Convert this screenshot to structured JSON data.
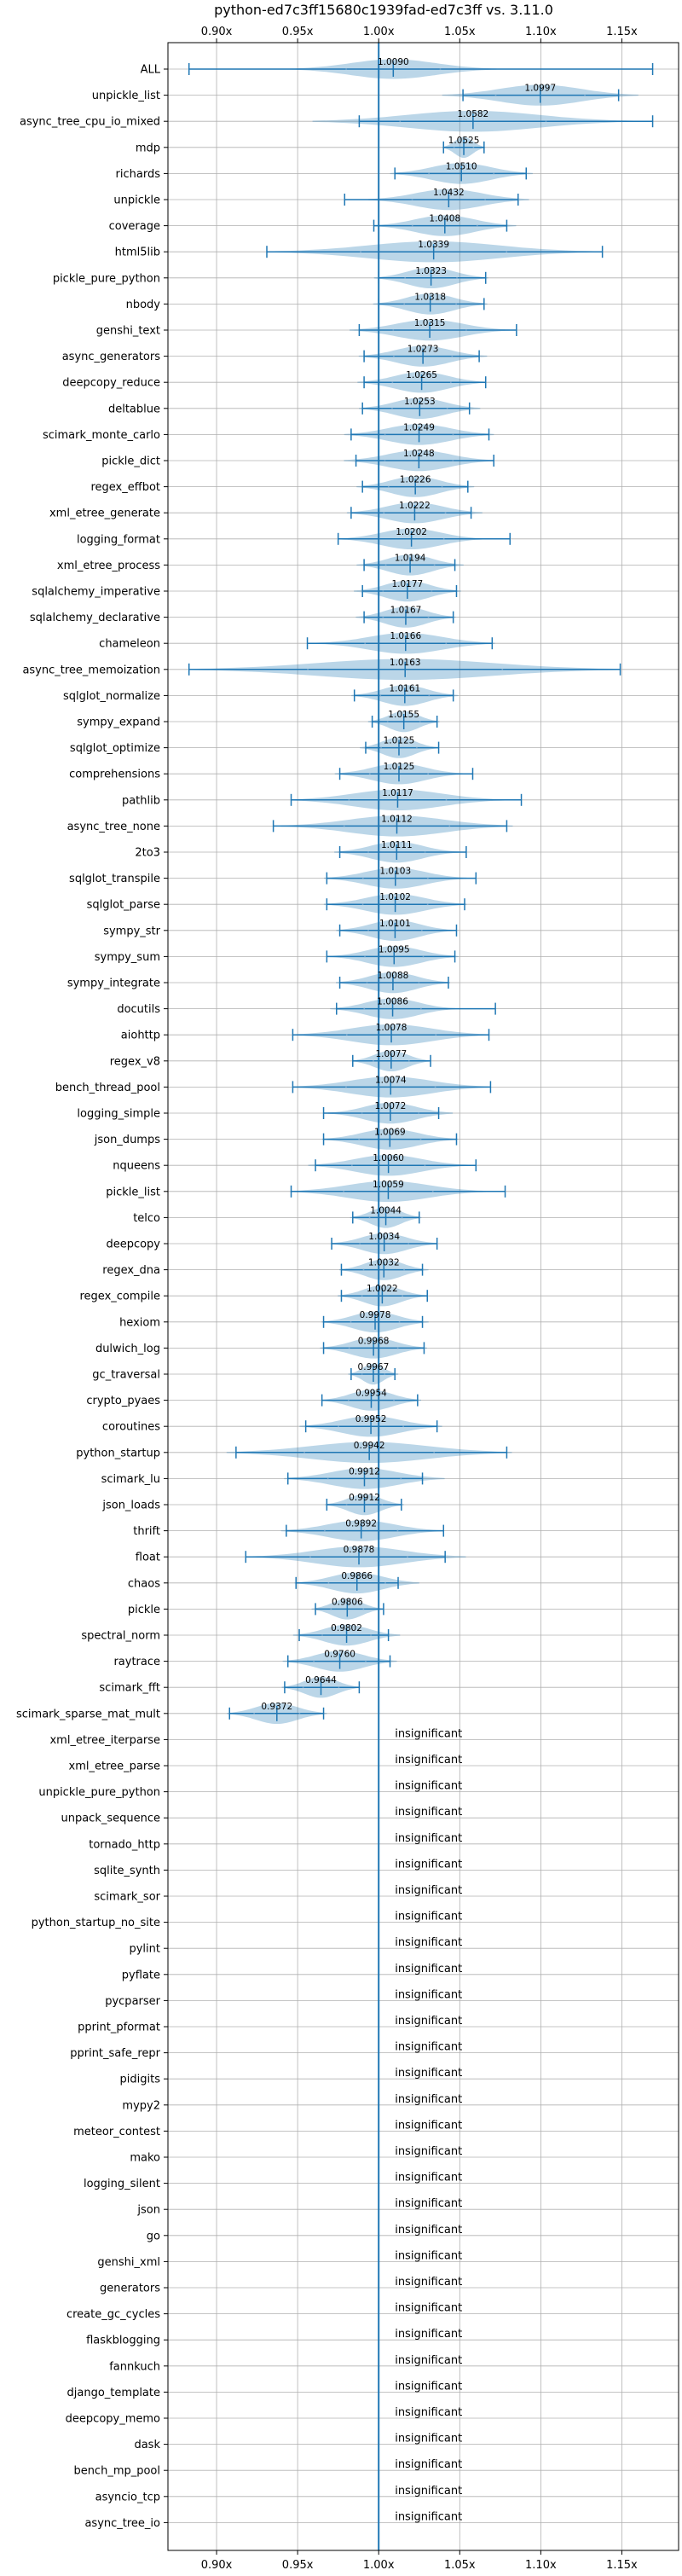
{
  "chart_data": {
    "type": "violin",
    "title": "python-ed7c3ff15680c1939fad-ed7c3ff vs. 3.11.0",
    "xlim": [
      0.87,
      1.185
    ],
    "xticks": [
      0.9,
      0.95,
      1.0,
      1.05,
      1.1,
      1.15
    ],
    "xtick_labels": [
      "0.90x",
      "0.95x",
      "1.00x",
      "1.05x",
      "1.10x",
      "1.15x"
    ],
    "reference_line": 1.0,
    "grid": true,
    "insignificant_label": "insignificant",
    "benchmarks": [
      {
        "name": "ALL",
        "label": "1.0090",
        "median": 1.009,
        "min": 0.883,
        "max": 1.169,
        "spread": 0.058,
        "height": 0.75
      },
      {
        "name": "unpickle_list",
        "label": "1.0997",
        "median": 1.0997,
        "min": 1.052,
        "max": 1.148,
        "spread": 0.055,
        "height": 0.8
      },
      {
        "name": "async_tree_cpu_io_mixed",
        "label": "1.0582",
        "median": 1.0582,
        "min": 0.988,
        "max": 1.169,
        "spread": 0.09,
        "height": 0.8
      },
      {
        "name": "mdp",
        "label": "1.0525",
        "median": 1.0525,
        "min": 1.04,
        "max": 1.065,
        "spread": 0.012,
        "height": 0.8
      },
      {
        "name": "richards",
        "label": "1.0510",
        "median": 1.051,
        "min": 1.01,
        "max": 1.091,
        "spread": 0.04,
        "height": 0.8
      },
      {
        "name": "unpickle",
        "label": "1.0432",
        "median": 1.0432,
        "min": 0.979,
        "max": 1.086,
        "spread": 0.045,
        "height": 0.8
      },
      {
        "name": "coverage",
        "label": "1.0408",
        "median": 1.0408,
        "min": 0.997,
        "max": 1.079,
        "spread": 0.04,
        "height": 0.8
      },
      {
        "name": "html5lib",
        "label": "1.0339",
        "median": 1.0339,
        "min": 0.931,
        "max": 1.138,
        "spread": 0.09,
        "height": 0.8
      },
      {
        "name": "pickle_pure_python",
        "label": "1.0323",
        "median": 1.0323,
        "min": 1.0,
        "max": 1.066,
        "spread": 0.032,
        "height": 0.8
      },
      {
        "name": "nbody",
        "label": "1.0318",
        "median": 1.0318,
        "min": 1.0,
        "max": 1.065,
        "spread": 0.032,
        "height": 0.8
      },
      {
        "name": "genshi_text",
        "label": "1.0315",
        "median": 1.0315,
        "min": 0.988,
        "max": 1.085,
        "spread": 0.045,
        "height": 0.8
      },
      {
        "name": "async_generators",
        "label": "1.0273",
        "median": 1.0273,
        "min": 0.991,
        "max": 1.062,
        "spread": 0.036,
        "height": 0.8
      },
      {
        "name": "deepcopy_reduce",
        "label": "1.0265",
        "median": 1.0265,
        "min": 0.991,
        "max": 1.066,
        "spread": 0.036,
        "height": 0.8
      },
      {
        "name": "deltablue",
        "label": "1.0253",
        "median": 1.0253,
        "min": 0.99,
        "max": 1.056,
        "spread": 0.034,
        "height": 0.8
      },
      {
        "name": "scimark_monte_carlo",
        "label": "1.0249",
        "median": 1.0249,
        "min": 0.983,
        "max": 1.068,
        "spread": 0.042,
        "height": 0.8
      },
      {
        "name": "pickle_dict",
        "label": "1.0248",
        "median": 1.0248,
        "min": 0.986,
        "max": 1.071,
        "spread": 0.042,
        "height": 0.8
      },
      {
        "name": "regex_effbot",
        "label": "1.0226",
        "median": 1.0226,
        "min": 0.99,
        "max": 1.055,
        "spread": 0.033,
        "height": 0.8
      },
      {
        "name": "xml_etree_generate",
        "label": "1.0222",
        "median": 1.0222,
        "min": 0.983,
        "max": 1.057,
        "spread": 0.038,
        "height": 0.8
      },
      {
        "name": "logging_format",
        "label": "1.0202",
        "median": 1.0202,
        "min": 0.975,
        "max": 1.081,
        "spread": 0.04,
        "height": 0.8
      },
      {
        "name": "xml_etree_process",
        "label": "1.0194",
        "median": 1.0194,
        "min": 0.991,
        "max": 1.047,
        "spread": 0.03,
        "height": 0.8
      },
      {
        "name": "sqlalchemy_imperative",
        "label": "1.0177",
        "median": 1.0177,
        "min": 0.99,
        "max": 1.048,
        "spread": 0.03,
        "height": 0.8
      },
      {
        "name": "sqlalchemy_declarative",
        "label": "1.0167",
        "median": 1.0167,
        "min": 0.991,
        "max": 1.046,
        "spread": 0.028,
        "height": 0.8
      },
      {
        "name": "chameleon",
        "label": "1.0166",
        "median": 1.0166,
        "min": 0.956,
        "max": 1.07,
        "spread": 0.05,
        "height": 0.8
      },
      {
        "name": "async_tree_memoization",
        "label": "1.0163",
        "median": 1.0163,
        "min": 0.883,
        "max": 1.149,
        "spread": 0.12,
        "height": 0.8
      },
      {
        "name": "sqlglot_normalize",
        "label": "1.0161",
        "median": 1.0161,
        "min": 0.985,
        "max": 1.046,
        "spread": 0.03,
        "height": 0.8
      },
      {
        "name": "sympy_expand",
        "label": "1.0155",
        "median": 1.0155,
        "min": 0.996,
        "max": 1.036,
        "spread": 0.02,
        "height": 0.8
      },
      {
        "name": "sqlglot_optimize",
        "label": "1.0125",
        "median": 1.0125,
        "min": 0.992,
        "max": 1.037,
        "spread": 0.022,
        "height": 0.8
      },
      {
        "name": "comprehensions",
        "label": "1.0125",
        "median": 1.0125,
        "min": 0.976,
        "max": 1.058,
        "spread": 0.036,
        "height": 0.8
      },
      {
        "name": "pathlib",
        "label": "1.0117",
        "median": 1.0117,
        "min": 0.946,
        "max": 1.088,
        "spread": 0.06,
        "height": 0.8
      },
      {
        "name": "async_tree_none",
        "label": "1.0112",
        "median": 1.0112,
        "min": 0.935,
        "max": 1.079,
        "spread": 0.065,
        "height": 0.8
      },
      {
        "name": "2to3",
        "label": "1.0111",
        "median": 1.0111,
        "min": 0.976,
        "max": 1.054,
        "spread": 0.035,
        "height": 0.8
      },
      {
        "name": "sqlglot_transpile",
        "label": "1.0103",
        "median": 1.0103,
        "min": 0.968,
        "max": 1.06,
        "spread": 0.04,
        "height": 0.8
      },
      {
        "name": "sqlglot_parse",
        "label": "1.0102",
        "median": 1.0102,
        "min": 0.968,
        "max": 1.053,
        "spread": 0.04,
        "height": 0.8
      },
      {
        "name": "sympy_str",
        "label": "1.0101",
        "median": 1.0101,
        "min": 0.976,
        "max": 1.048,
        "spread": 0.033,
        "height": 0.8
      },
      {
        "name": "sympy_sum",
        "label": "1.0095",
        "median": 1.0095,
        "min": 0.968,
        "max": 1.047,
        "spread": 0.036,
        "height": 0.8
      },
      {
        "name": "sympy_integrate",
        "label": "1.0088",
        "median": 1.0088,
        "min": 0.976,
        "max": 1.043,
        "spread": 0.032,
        "height": 0.8
      },
      {
        "name": "docutils",
        "label": "1.0086",
        "median": 1.0086,
        "min": 0.974,
        "max": 1.072,
        "spread": 0.035,
        "height": 0.8
      },
      {
        "name": "aiohttp",
        "label": "1.0078",
        "median": 1.0078,
        "min": 0.947,
        "max": 1.068,
        "spread": 0.055,
        "height": 0.8
      },
      {
        "name": "regex_v8",
        "label": "1.0077",
        "median": 1.0077,
        "min": 0.984,
        "max": 1.032,
        "spread": 0.022,
        "height": 0.8
      },
      {
        "name": "bench_thread_pool",
        "label": "1.0074",
        "median": 1.0074,
        "min": 0.947,
        "max": 1.069,
        "spread": 0.055,
        "height": 0.8
      },
      {
        "name": "logging_simple",
        "label": "1.0072",
        "median": 1.0072,
        "min": 0.966,
        "max": 1.037,
        "spread": 0.035,
        "height": 0.8
      },
      {
        "name": "json_dumps",
        "label": "1.0069",
        "median": 1.0069,
        "min": 0.966,
        "max": 1.048,
        "spread": 0.038,
        "height": 0.8
      },
      {
        "name": "nqueens",
        "label": "1.0060",
        "median": 1.006,
        "min": 0.961,
        "max": 1.06,
        "spread": 0.045,
        "height": 0.8
      },
      {
        "name": "pickle_list",
        "label": "1.0059",
        "median": 1.0059,
        "min": 0.946,
        "max": 1.078,
        "spread": 0.055,
        "height": 0.8
      },
      {
        "name": "telco",
        "label": "1.0044",
        "median": 1.0044,
        "min": 0.984,
        "max": 1.025,
        "spread": 0.02,
        "height": 0.8
      },
      {
        "name": "deepcopy",
        "label": "1.0034",
        "median": 1.0034,
        "min": 0.971,
        "max": 1.036,
        "spread": 0.03,
        "height": 0.8
      },
      {
        "name": "regex_dna",
        "label": "1.0032",
        "median": 1.0032,
        "min": 0.977,
        "max": 1.027,
        "spread": 0.025,
        "height": 0.8
      },
      {
        "name": "regex_compile",
        "label": "1.0022",
        "median": 1.0022,
        "min": 0.977,
        "max": 1.03,
        "spread": 0.025,
        "height": 0.8
      },
      {
        "name": "hexiom",
        "label": "0.9978",
        "median": 0.9978,
        "min": 0.966,
        "max": 1.027,
        "spread": 0.03,
        "height": 0.8
      },
      {
        "name": "dulwich_log",
        "label": "0.9968",
        "median": 0.9968,
        "min": 0.966,
        "max": 1.028,
        "spread": 0.03,
        "height": 0.8
      },
      {
        "name": "gc_traversal",
        "label": "0.9967",
        "median": 0.9967,
        "min": 0.983,
        "max": 1.01,
        "spread": 0.014,
        "height": 0.8
      },
      {
        "name": "crypto_pyaes",
        "label": "0.9954",
        "median": 0.9954,
        "min": 0.965,
        "max": 1.024,
        "spread": 0.028,
        "height": 0.8
      },
      {
        "name": "coroutines",
        "label": "0.9952",
        "median": 0.9952,
        "min": 0.955,
        "max": 1.036,
        "spread": 0.04,
        "height": 0.8
      },
      {
        "name": "python_startup",
        "label": "0.9942",
        "median": 0.9942,
        "min": 0.912,
        "max": 1.079,
        "spread": 0.08,
        "height": 0.8
      },
      {
        "name": "scimark_lu",
        "label": "0.9912",
        "median": 0.9912,
        "min": 0.944,
        "max": 1.027,
        "spread": 0.045,
        "height": 0.8
      },
      {
        "name": "json_loads",
        "label": "0.9912",
        "median": 0.9912,
        "min": 0.968,
        "max": 1.014,
        "spread": 0.022,
        "height": 0.8
      },
      {
        "name": "thrift",
        "label": "0.9892",
        "median": 0.9892,
        "min": 0.943,
        "max": 1.04,
        "spread": 0.045,
        "height": 0.8
      },
      {
        "name": "float",
        "label": "0.9878",
        "median": 0.9878,
        "min": 0.918,
        "max": 1.041,
        "spread": 0.06,
        "height": 0.8
      },
      {
        "name": "chaos",
        "label": "0.9866",
        "median": 0.9866,
        "min": 0.949,
        "max": 1.012,
        "spread": 0.035,
        "height": 0.8
      },
      {
        "name": "pickle",
        "label": "0.9806",
        "median": 0.9806,
        "min": 0.961,
        "max": 1.003,
        "spread": 0.02,
        "height": 0.8
      },
      {
        "name": "spectral_norm",
        "label": "0.9802",
        "median": 0.9802,
        "min": 0.951,
        "max": 1.006,
        "spread": 0.03,
        "height": 0.8
      },
      {
        "name": "raytrace",
        "label": "0.9760",
        "median": 0.976,
        "min": 0.944,
        "max": 1.007,
        "spread": 0.032,
        "height": 0.8
      },
      {
        "name": "scimark_fft",
        "label": "0.9644",
        "median": 0.9644,
        "min": 0.942,
        "max": 0.988,
        "spread": 0.022,
        "height": 0.8
      },
      {
        "name": "scimark_sparse_mat_mult",
        "label": "0.9372",
        "median": 0.9372,
        "min": 0.908,
        "max": 0.966,
        "spread": 0.028,
        "height": 0.8
      },
      {
        "name": "xml_etree_iterparse"
      },
      {
        "name": "xml_etree_parse"
      },
      {
        "name": "unpickle_pure_python"
      },
      {
        "name": "unpack_sequence"
      },
      {
        "name": "tornado_http"
      },
      {
        "name": "sqlite_synth"
      },
      {
        "name": "scimark_sor"
      },
      {
        "name": "python_startup_no_site"
      },
      {
        "name": "pylint"
      },
      {
        "name": "pyflate"
      },
      {
        "name": "pycparser"
      },
      {
        "name": "pprint_pformat"
      },
      {
        "name": "pprint_safe_repr"
      },
      {
        "name": "pidigits"
      },
      {
        "name": "mypy2"
      },
      {
        "name": "meteor_contest"
      },
      {
        "name": "mako"
      },
      {
        "name": "logging_silent"
      },
      {
        "name": "json"
      },
      {
        "name": "go"
      },
      {
        "name": "genshi_xml"
      },
      {
        "name": "generators"
      },
      {
        "name": "create_gc_cycles"
      },
      {
        "name": "flaskblogging"
      },
      {
        "name": "fannkuch"
      },
      {
        "name": "django_template"
      },
      {
        "name": "deepcopy_memo"
      },
      {
        "name": "dask"
      },
      {
        "name": "bench_mp_pool"
      },
      {
        "name": "asyncio_tcp"
      },
      {
        "name": "async_tree_io"
      }
    ]
  }
}
